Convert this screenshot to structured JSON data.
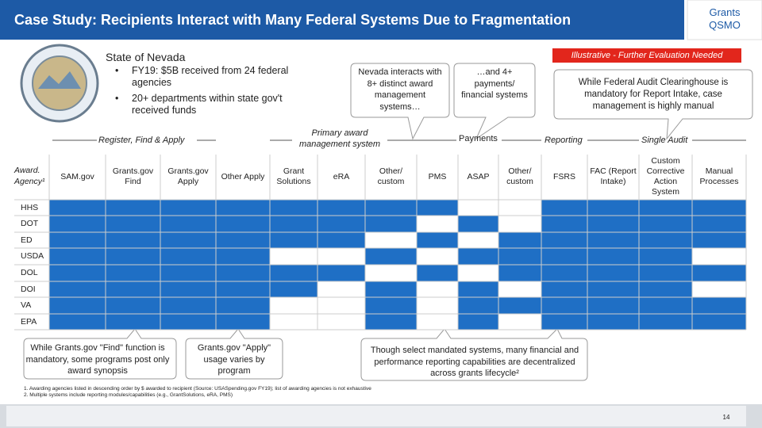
{
  "header": {
    "title": "Case Study: Recipients Interact with Many Federal Systems Due to Fragmentation",
    "logo_line1": "Grants",
    "logo_line2": "QSMO"
  },
  "state": {
    "name": "State of Nevada",
    "bullets": [
      "FY19: $5B received from 24 federal agencies",
      "20+ departments within state gov't received funds"
    ]
  },
  "flag": "Illustrative - Further Evaluation Needed",
  "top_callouts": [
    "Nevada interacts with 8+ distinct award management systems…",
    "…and 4+ payments/ financial systems",
    "While Federal Audit Clearinghouse is mandatory for Report Intake, case management is highly manual"
  ],
  "phases": [
    "Register, Find & Apply",
    "Primary award management system",
    "Payments",
    "Reporting",
    "Single Audit"
  ],
  "table": {
    "corner": "Award. Agency¹",
    "columns": [
      "SAM.gov",
      "Grants.gov Find",
      "Grants.gov Apply",
      "Other Apply",
      "Grant Solutions",
      "eRA",
      "Other/ custom",
      "PMS",
      "ASAP",
      "Other/ custom",
      "FSRS",
      "FAC (Report Intake)",
      "Custom Corrective Action System",
      "Manual Processes"
    ],
    "rows": [
      {
        "label": "HHS",
        "cells": [
          1,
          1,
          1,
          1,
          1,
          1,
          1,
          1,
          0,
          0,
          1,
          1,
          1,
          1
        ]
      },
      {
        "label": "DOT",
        "cells": [
          1,
          1,
          1,
          1,
          1,
          1,
          1,
          0,
          1,
          0,
          1,
          1,
          1,
          1
        ]
      },
      {
        "label": "ED",
        "cells": [
          1,
          1,
          1,
          1,
          1,
          1,
          0,
          1,
          0,
          1,
          1,
          1,
          1,
          1
        ]
      },
      {
        "label": "USDA",
        "cells": [
          1,
          1,
          1,
          1,
          0,
          0,
          1,
          0,
          1,
          1,
          1,
          1,
          1,
          0
        ]
      },
      {
        "label": "DOL",
        "cells": [
          1,
          1,
          1,
          1,
          1,
          1,
          0,
          1,
          0,
          1,
          1,
          1,
          1,
          1
        ]
      },
      {
        "label": "DOI",
        "cells": [
          1,
          1,
          1,
          1,
          1,
          0,
          1,
          0,
          1,
          0,
          1,
          1,
          1,
          0
        ]
      },
      {
        "label": "VA",
        "cells": [
          1,
          1,
          1,
          1,
          0,
          0,
          1,
          0,
          1,
          1,
          1,
          1,
          1,
          1
        ]
      },
      {
        "label": "EPA",
        "cells": [
          1,
          1,
          1,
          1,
          0,
          0,
          1,
          0,
          1,
          0,
          1,
          1,
          1,
          1
        ]
      }
    ]
  },
  "bottom_callouts": [
    "While Grants.gov \"Find\" function is mandatory, some programs post only award synopsis",
    "Grants.gov \"Apply\" usage varies by program",
    "Though select mandated systems, many financial and performance reporting capabilities are decentralized across grants lifecycle²"
  ],
  "footnotes": [
    "1. Awarding agencies listed in descending order by $ awarded to recipient (Source: USASpending.gov FY19); list of awarding agencies is not exhaustive",
    "2. Multiple systems include reporting modules/capabilities (e.g., GrantSolutions, eRA, PMS)"
  ],
  "page_number": "14"
}
